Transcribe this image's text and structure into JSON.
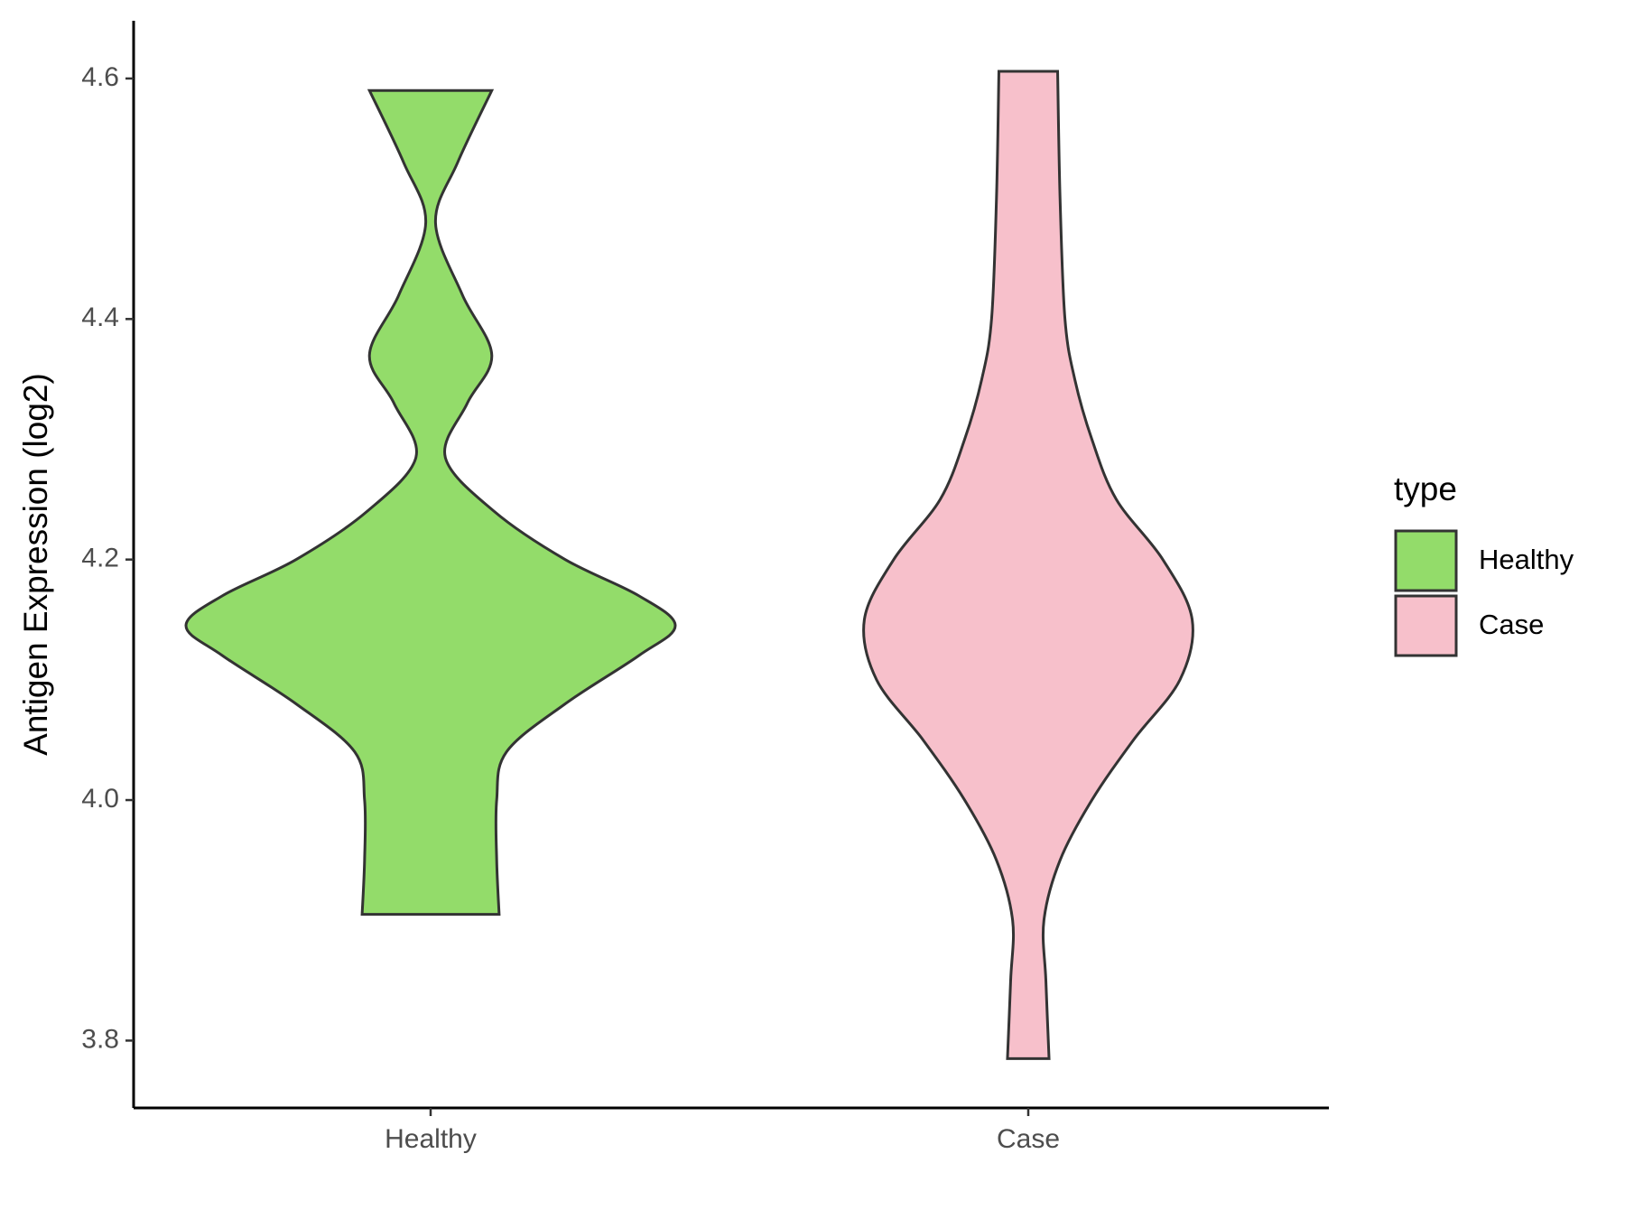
{
  "chart_data": {
    "type": "violin",
    "ylabel": "Antigen Expression (log2)",
    "categories": [
      "Healthy",
      "Case"
    ],
    "ylim": [
      3.744,
      4.648
    ],
    "yticks": [
      {
        "value": 3.8,
        "label": "3.8"
      },
      {
        "value": 4.0,
        "label": "4.0"
      },
      {
        "value": 4.2,
        "label": "4.2"
      },
      {
        "value": 4.4,
        "label": "4.4"
      },
      {
        "value": 4.6,
        "label": "4.6"
      }
    ],
    "legend_title": "type",
    "legend_position": "right",
    "series": [
      {
        "name": "Healthy",
        "color": "#93dc6a",
        "y": [
          3.905,
          3.95,
          4.0,
          4.04,
          4.08,
          4.12,
          4.145,
          4.17,
          4.2,
          4.24,
          4.285,
          4.33,
          4.37,
          4.42,
          4.48,
          4.53,
          4.59
        ],
        "density": [
          0.28,
          0.27,
          0.27,
          0.31,
          0.55,
          0.85,
          1.0,
          0.85,
          0.55,
          0.26,
          0.06,
          0.15,
          0.25,
          0.13,
          0.02,
          0.11,
          0.25
        ]
      },
      {
        "name": "Case",
        "color": "#f7c0cb",
        "y": [
          3.785,
          3.85,
          3.9,
          3.95,
          4.0,
          4.05,
          4.1,
          4.15,
          4.2,
          4.25,
          4.3,
          4.35,
          4.4,
          4.5,
          4.606
        ],
        "density": [
          0.085,
          0.072,
          0.064,
          0.13,
          0.26,
          0.43,
          0.62,
          0.67,
          0.55,
          0.36,
          0.26,
          0.19,
          0.15,
          0.13,
          0.12
        ]
      }
    ]
  }
}
